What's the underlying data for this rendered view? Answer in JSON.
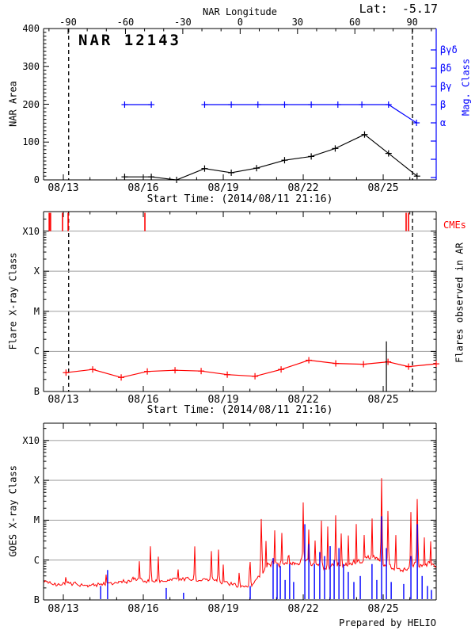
{
  "header": {
    "lat_label": "Lat:  -5.17"
  },
  "footer": {
    "prepared_by": "Prepared by HELIO"
  },
  "colors": {
    "red": "#FF0000",
    "blue": "#0000FF",
    "grid_grey": "#A8A8A8",
    "black": "#000000"
  },
  "chart_data": [
    {
      "type": "line",
      "title": "NAR 12143",
      "top_axis": {
        "label": "NAR Longitude",
        "ticks": [
          -90,
          -60,
          -30,
          0,
          30,
          60,
          90
        ]
      },
      "xlabel": "Start Time: (2014/08/11 21:16)",
      "xticks": [
        "08/13",
        "08/16",
        "08/19",
        "08/22",
        "08/25"
      ],
      "xtick_days": [
        13,
        16,
        19,
        22,
        25
      ],
      "xlim_days": [
        12.26,
        26.99
      ],
      "ylabel": "NAR Area",
      "ylim": [
        0,
        400
      ],
      "yticks": [
        0,
        100,
        200,
        300,
        400
      ],
      "y2label": "Mag. Class",
      "y2ticks": [
        "α",
        "β",
        "βγ",
        "βδ",
        "βγδ"
      ],
      "limb_crossing_days": [
        13.2,
        26.1
      ],
      "series": [
        {
          "name": "nar-area",
          "color": "#000000",
          "x_days": [
            15.3,
            16.3,
            17.25,
            18.3,
            19.3,
            20.25,
            21.3,
            22.3,
            23.2,
            24.3,
            25.2,
            26.27
          ],
          "values": [
            8,
            8,
            0,
            30,
            19,
            31,
            52,
            62,
            83,
            120,
            70,
            10
          ]
        },
        {
          "name": "mag-class-segment-1",
          "color": "#0000FF",
          "x_days": [
            15.3,
            16.3
          ],
          "classes": [
            "β",
            "β"
          ]
        },
        {
          "name": "mag-class-segment-2",
          "color": "#0000FF",
          "x_days": [
            18.3,
            19.3,
            20.3,
            21.3,
            22.3,
            23.3,
            24.2,
            25.2,
            26.25
          ],
          "classes": [
            "β",
            "β",
            "β",
            "β",
            "β",
            "β",
            "β",
            "β",
            "α"
          ]
        }
      ]
    },
    {
      "type": "line",
      "ylabel": "Flare X-ray Class",
      "yticks": [
        "B",
        "C",
        "M",
        "X",
        "X10"
      ],
      "right_label": "Flares observed in AR",
      "xlabel": "Start Time: (2014/08/11 21:16)",
      "xticks": [
        "08/13",
        "08/16",
        "08/19",
        "08/22",
        "08/25"
      ],
      "xtick_days": [
        13,
        16,
        19,
        22,
        25
      ],
      "cmes": {
        "label": "CMEs",
        "days": [
          12.47,
          12.52,
          12.97,
          13.18,
          16.06,
          25.86,
          25.95
        ]
      },
      "background_flux": {
        "x_days": [
          13.1,
          14.1,
          15.17,
          16.15,
          17.19,
          18.17,
          19.15,
          20.19,
          21.17,
          22.21,
          23.22,
          24.26,
          25.18,
          25.95,
          27.0
        ],
        "decades_above_B": [
          0.47,
          0.55,
          0.35,
          0.5,
          0.53,
          0.51,
          0.42,
          0.38,
          0.55,
          0.78,
          0.7,
          0.68,
          0.74,
          0.62,
          0.69
        ]
      },
      "flare_events": [
        {
          "day": 25.12,
          "peak_decades_above_B": 1.25
        }
      ],
      "limb_crossing_days": [
        13.2,
        26.1
      ]
    },
    {
      "type": "line",
      "ylabel": "GOES X-ray Class",
      "yticks": [
        "B",
        "C",
        "M",
        "X",
        "X10"
      ],
      "xticks": [
        "08/13",
        "08/16",
        "08/19",
        "08/22",
        "08/25"
      ],
      "xtick_days": [
        13,
        16,
        19,
        22,
        25
      ],
      "xray_trend_decades": [
        [
          12.26,
          0.45
        ],
        [
          12.8,
          0.4
        ],
        [
          13.2,
          0.43
        ],
        [
          13.8,
          0.36
        ],
        [
          14.3,
          0.38
        ],
        [
          14.8,
          0.42
        ],
        [
          15.3,
          0.46
        ],
        [
          15.7,
          0.52
        ],
        [
          16.1,
          0.48
        ],
        [
          16.6,
          0.46
        ],
        [
          17.0,
          0.5
        ],
        [
          17.5,
          0.54
        ],
        [
          18.0,
          0.5
        ],
        [
          18.5,
          0.52
        ],
        [
          19.0,
          0.44
        ],
        [
          19.5,
          0.37
        ],
        [
          19.9,
          0.32
        ],
        [
          20.2,
          0.45
        ],
        [
          20.5,
          0.7
        ],
        [
          20.8,
          0.95
        ],
        [
          21.1,
          0.88
        ],
        [
          21.4,
          0.97
        ],
        [
          21.7,
          0.9
        ],
        [
          22.0,
          0.98
        ],
        [
          22.3,
          0.93
        ],
        [
          22.6,
          0.86
        ],
        [
          22.9,
          0.8
        ],
        [
          23.2,
          0.88
        ],
        [
          23.5,
          0.84
        ],
        [
          23.8,
          0.92
        ],
        [
          24.1,
          0.97
        ],
        [
          24.4,
          1.02
        ],
        [
          24.7,
          1.06
        ],
        [
          25.0,
          0.92
        ],
        [
          25.3,
          0.83
        ],
        [
          25.6,
          0.75
        ],
        [
          25.9,
          0.82
        ],
        [
          26.2,
          0.92
        ],
        [
          26.5,
          0.86
        ],
        [
          26.99,
          0.92
        ]
      ],
      "xray_spikes_decades": [
        [
          13.1,
          0.75
        ],
        [
          14.6,
          0.7
        ],
        [
          15.6,
          0.8
        ],
        [
          15.85,
          1.0
        ],
        [
          16.27,
          1.45
        ],
        [
          16.56,
          1.2
        ],
        [
          17.3,
          0.9
        ],
        [
          17.93,
          1.35
        ],
        [
          18.55,
          1.35
        ],
        [
          18.82,
          1.3
        ],
        [
          19.0,
          0.9
        ],
        [
          19.6,
          0.8
        ],
        [
          20.0,
          1.2
        ],
        [
          20.43,
          2.3
        ],
        [
          20.6,
          1.6
        ],
        [
          20.93,
          1.75
        ],
        [
          21.2,
          1.8
        ],
        [
          21.45,
          1.6
        ],
        [
          22.0,
          2.5
        ],
        [
          22.21,
          1.9
        ],
        [
          22.45,
          1.7
        ],
        [
          22.68,
          2.1
        ],
        [
          22.92,
          1.85
        ],
        [
          23.22,
          2.3
        ],
        [
          23.43,
          1.9
        ],
        [
          23.69,
          1.7
        ],
        [
          23.99,
          1.95
        ],
        [
          24.29,
          1.8
        ],
        [
          24.58,
          2.2
        ],
        [
          24.94,
          3.1
        ],
        [
          25.18,
          2.4
        ],
        [
          25.47,
          1.8
        ],
        [
          26.04,
          2.3
        ],
        [
          26.28,
          2.8
        ],
        [
          26.54,
          1.7
        ],
        [
          26.78,
          1.5
        ]
      ],
      "blue_channel_spikes_decades": [
        [
          14.4,
          0.35
        ],
        [
          14.66,
          0.75
        ],
        [
          16.86,
          0.3
        ],
        [
          17.51,
          0.18
        ],
        [
          20.01,
          0.35
        ],
        [
          20.87,
          1.05
        ],
        [
          21.02,
          0.9
        ],
        [
          21.14,
          0.85
        ],
        [
          21.32,
          0.5
        ],
        [
          21.49,
          0.9
        ],
        [
          21.64,
          0.45
        ],
        [
          22.06,
          1.9
        ],
        [
          22.21,
          1.4
        ],
        [
          22.42,
          0.9
        ],
        [
          22.62,
          1.2
        ],
        [
          22.8,
          1.1
        ],
        [
          23.01,
          1.35
        ],
        [
          23.16,
          1.0
        ],
        [
          23.34,
          1.3
        ],
        [
          23.51,
          0.9
        ],
        [
          23.69,
          0.7
        ],
        [
          23.9,
          0.45
        ],
        [
          24.14,
          0.6
        ],
        [
          24.58,
          0.9
        ],
        [
          24.76,
          0.5
        ],
        [
          24.94,
          2.1
        ],
        [
          25.12,
          1.3
        ],
        [
          25.3,
          0.45
        ],
        [
          25.77,
          0.4
        ],
        [
          26.04,
          1.1
        ],
        [
          26.28,
          1.9
        ],
        [
          26.46,
          0.6
        ],
        [
          26.66,
          0.35
        ],
        [
          26.81,
          0.25
        ]
      ]
    }
  ]
}
